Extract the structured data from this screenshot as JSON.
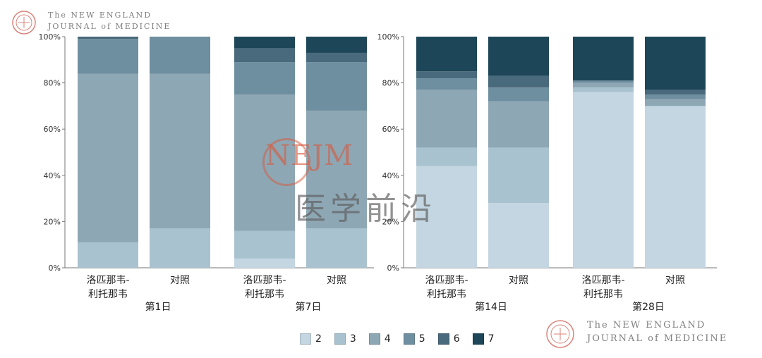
{
  "logo": {
    "line1": "The NEW ENGLAND",
    "line2": "JOURNAL of MEDICINE"
  },
  "watermark": {
    "en": "NEJM",
    "cn": "医学前沿"
  },
  "colors": {
    "2": "#c3d6e1",
    "3": "#a9c2cf",
    "4": "#8ea7b5",
    "5": "#6e8f9f",
    "6": "#49697c",
    "7": "#1d4658"
  },
  "chart_data": {
    "type": "bar",
    "stacked": true,
    "yticks": [
      "0%",
      "20%",
      "40%",
      "60%",
      "80%",
      "100%"
    ],
    "ylim": [
      0,
      100
    ],
    "legend": [
      "2",
      "3",
      "4",
      "5",
      "6",
      "7"
    ],
    "panels": [
      {
        "groups": [
          {
            "day": "第1日",
            "bars": [
              {
                "label": [
                  "洛匹那韦-",
                  "利托那韦"
                ],
                "values": {
                  "2": 0,
                  "3": 11,
                  "4": 73,
                  "5": 15,
                  "6": 1,
                  "7": 0
                }
              },
              {
                "label": [
                  "对照"
                ],
                "values": {
                  "2": 0,
                  "3": 17,
                  "4": 67,
                  "5": 16,
                  "6": 0,
                  "7": 0
                }
              }
            ]
          },
          {
            "day": "第7日",
            "bars": [
              {
                "label": [
                  "洛匹那韦-",
                  "利托那韦"
                ],
                "values": {
                  "2": 4,
                  "3": 12,
                  "4": 59,
                  "5": 14,
                  "6": 6,
                  "7": 5
                }
              },
              {
                "label": [
                  "对照"
                ],
                "values": {
                  "2": 0,
                  "3": 17,
                  "4": 51,
                  "5": 21,
                  "6": 4,
                  "7": 7
                }
              }
            ]
          }
        ]
      },
      {
        "groups": [
          {
            "day": "第14日",
            "bars": [
              {
                "label": [
                  "洛匹那韦-",
                  "利托那韦"
                ],
                "values": {
                  "2": 44,
                  "3": 8,
                  "4": 25,
                  "5": 5,
                  "6": 3,
                  "7": 15
                }
              },
              {
                "label": [
                  "对照"
                ],
                "values": {
                  "2": 28,
                  "3": 24,
                  "4": 20,
                  "5": 6,
                  "6": 5,
                  "7": 17
                }
              }
            ]
          },
          {
            "day": "第28日",
            "bars": [
              {
                "label": [
                  "洛匹那韦-",
                  "利托那韦"
                ],
                "values": {
                  "2": 76,
                  "3": 2,
                  "4": 2,
                  "5": 1,
                  "6": 0,
                  "7": 19
                }
              },
              {
                "label": [
                  "对照"
                ],
                "values": {
                  "2": 70,
                  "3": 0,
                  "4": 3,
                  "5": 2,
                  "6": 2,
                  "7": 23
                }
              }
            ]
          }
        ]
      }
    ]
  }
}
